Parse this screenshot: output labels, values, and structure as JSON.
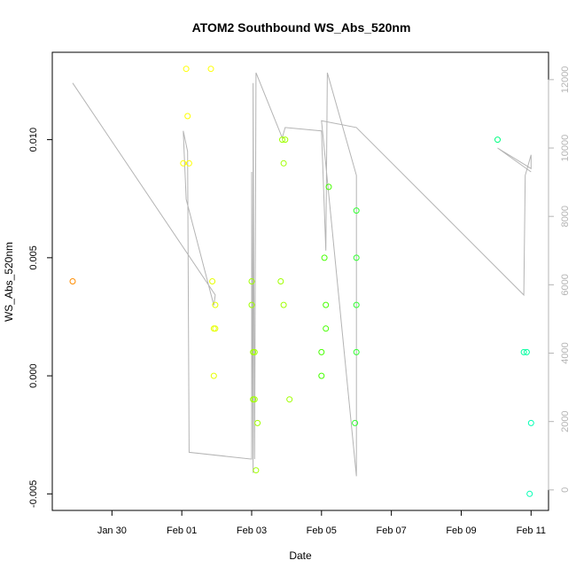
{
  "chart_data": {
    "type": "scatter",
    "title": "ATOM2 Southbound WS_Abs_520nm",
    "xlabel": "Date",
    "ylabel": "WS_Abs_520nm",
    "x_axis": {
      "kind": "date",
      "range": [
        "2017-01-28T07:00",
        "2017-02-11T12:00"
      ],
      "ticks": [
        "2017-01-30",
        "2017-02-01",
        "2017-02-03",
        "2017-02-05",
        "2017-02-07",
        "2017-02-09",
        "2017-02-11"
      ],
      "tick_labels": [
        "Jan 30",
        "Feb 01",
        "Feb 03",
        "Feb 05",
        "Feb 07",
        "Feb 09",
        "Feb 11"
      ]
    },
    "y_axis": {
      "range": [
        -0.0057,
        0.0137
      ],
      "ticks": [
        -0.005,
        0.0,
        0.005,
        0.01
      ],
      "tick_labels": [
        "-0.005",
        "0.000",
        "0.005",
        "0.010"
      ]
    },
    "y2_axis": {
      "range": [
        -600,
        12800
      ],
      "ticks": [
        0,
        2000,
        4000,
        6000,
        8000,
        10000,
        12000
      ],
      "tick_labels": [
        "0",
        "2000",
        "4000",
        "6000",
        "8000",
        "10000",
        "12000"
      ],
      "color": "#b4b4b4"
    },
    "grid": false,
    "legend": "none",
    "series": [
      {
        "kind": "points",
        "marker": "open-circle",
        "points": [
          {
            "x": "2017-01-28T21:00",
            "y": 0.004,
            "color": "#ff8c00"
          },
          {
            "x": "2017-02-01T01:00",
            "y": 0.009,
            "color": "#ffff00"
          },
          {
            "x": "2017-02-01T03:00",
            "y": 0.013,
            "color": "#ffff00"
          },
          {
            "x": "2017-02-01T04:00",
            "y": 0.011,
            "color": "#ffff00"
          },
          {
            "x": "2017-02-01T05:00",
            "y": 0.009,
            "color": "#ffff00"
          },
          {
            "x": "2017-02-01T20:00",
            "y": 0.013,
            "color": "#ffff00"
          },
          {
            "x": "2017-02-01T21:00",
            "y": 0.004,
            "color": "#e6ff00"
          },
          {
            "x": "2017-02-01T22:00",
            "y": 0.002,
            "color": "#e6ff00"
          },
          {
            "x": "2017-02-01T22:00",
            "y": 0.0,
            "color": "#e6ff00"
          },
          {
            "x": "2017-02-01T23:00",
            "y": 0.003,
            "color": "#e6ff00"
          },
          {
            "x": "2017-02-01T23:00",
            "y": 0.002,
            "color": "#e6ff00"
          },
          {
            "x": "2017-02-03T00:00",
            "y": 0.004,
            "color": "#a0ff00"
          },
          {
            "x": "2017-02-03T00:00",
            "y": 0.003,
            "color": "#a0ff00"
          },
          {
            "x": "2017-02-03T01:00",
            "y": 0.001,
            "color": "#a0ff00"
          },
          {
            "x": "2017-02-03T01:00",
            "y": -0.001,
            "color": "#a0ff00"
          },
          {
            "x": "2017-02-03T02:00",
            "y": 0.001,
            "color": "#a0ff00"
          },
          {
            "x": "2017-02-03T02:00",
            "y": -0.001,
            "color": "#a0ff00"
          },
          {
            "x": "2017-02-03T03:00",
            "y": -0.004,
            "color": "#a0ff00"
          },
          {
            "x": "2017-02-03T04:00",
            "y": -0.002,
            "color": "#a0ff00"
          },
          {
            "x": "2017-02-03T20:00",
            "y": 0.004,
            "color": "#a0ff00"
          },
          {
            "x": "2017-02-03T21:00",
            "y": 0.01,
            "color": "#a0ff00"
          },
          {
            "x": "2017-02-03T22:00",
            "y": 0.009,
            "color": "#a0ff00"
          },
          {
            "x": "2017-02-03T22:00",
            "y": 0.003,
            "color": "#a0ff00"
          },
          {
            "x": "2017-02-03T23:00",
            "y": 0.01,
            "color": "#a0ff00"
          },
          {
            "x": "2017-02-04T02:00",
            "y": -0.001,
            "color": "#a0ff00"
          },
          {
            "x": "2017-02-05T00:00",
            "y": 0.001,
            "color": "#46ff00"
          },
          {
            "x": "2017-02-05T00:00",
            "y": 0.0,
            "color": "#46ff00"
          },
          {
            "x": "2017-02-05T02:00",
            "y": 0.005,
            "color": "#46ff00"
          },
          {
            "x": "2017-02-05T03:00",
            "y": 0.003,
            "color": "#46ff00"
          },
          {
            "x": "2017-02-05T03:00",
            "y": 0.002,
            "color": "#46ff00"
          },
          {
            "x": "2017-02-05T05:00",
            "y": 0.008,
            "color": "#46ff00"
          },
          {
            "x": "2017-02-05T23:00",
            "y": -0.002,
            "color": "#32ff32"
          },
          {
            "x": "2017-02-06T00:00",
            "y": 0.007,
            "color": "#32ff32"
          },
          {
            "x": "2017-02-06T00:00",
            "y": 0.005,
            "color": "#32ff32"
          },
          {
            "x": "2017-02-06T00:00",
            "y": 0.003,
            "color": "#32ff32"
          },
          {
            "x": "2017-02-06T00:00",
            "y": 0.001,
            "color": "#32ff32"
          },
          {
            "x": "2017-02-10T01:00",
            "y": 0.01,
            "color": "#00ff80"
          },
          {
            "x": "2017-02-10T19:00",
            "y": 0.001,
            "color": "#00ffa0"
          },
          {
            "x": "2017-02-10T21:00",
            "y": 0.001,
            "color": "#00ffa0"
          },
          {
            "x": "2017-02-10T23:00",
            "y": -0.005,
            "color": "#00ffb4"
          },
          {
            "x": "2017-02-11T00:00",
            "y": -0.002,
            "color": "#00ffb4"
          }
        ]
      },
      {
        "kind": "line",
        "axis": "y2",
        "color": "#b4b4b4",
        "points": [
          {
            "x": "2017-01-28T21:00",
            "y": 11900
          },
          {
            "x": "2017-02-01T23:00",
            "y": 5700
          },
          {
            "x": "2017-02-01T22:00",
            "y": 5400
          },
          {
            "x": "2017-02-01T03:00",
            "y": 8500
          },
          {
            "x": "2017-02-01T01:00",
            "y": 10500
          },
          {
            "x": "2017-02-01T04:00",
            "y": 9900
          },
          {
            "x": "2017-02-01T05:00",
            "y": 1100
          },
          {
            "x": "2017-02-03T00:00",
            "y": 900
          },
          {
            "x": "2017-02-03T00:00",
            "y": 9300
          },
          {
            "x": "2017-02-03T01:00",
            "y": 500
          },
          {
            "x": "2017-02-03T01:00",
            "y": 11900
          },
          {
            "x": "2017-02-03T02:00",
            "y": 900
          },
          {
            "x": "2017-02-03T03:00",
            "y": 12200
          },
          {
            "x": "2017-02-03T21:00",
            "y": 10300
          },
          {
            "x": "2017-02-03T23:00",
            "y": 10600
          },
          {
            "x": "2017-02-05T00:00",
            "y": 10500
          },
          {
            "x": "2017-02-05T03:00",
            "y": 7000
          },
          {
            "x": "2017-02-05T04:00",
            "y": 12200
          },
          {
            "x": "2017-02-06T00:00",
            "y": 9200
          },
          {
            "x": "2017-02-06T00:00",
            "y": 400
          },
          {
            "x": "2017-02-05T00:00",
            "y": 10800
          },
          {
            "x": "2017-02-06T00:00",
            "y": 10600
          },
          {
            "x": "2017-02-10T19:00",
            "y": 5700
          },
          {
            "x": "2017-02-10T20:00",
            "y": 9200
          },
          {
            "x": "2017-02-11T00:00",
            "y": 9800
          },
          {
            "x": "2017-02-11T00:00",
            "y": 9400
          },
          {
            "x": "2017-02-10T01:00",
            "y": 10000
          },
          {
            "x": "2017-02-11T00:00",
            "y": 9300
          }
        ]
      }
    ]
  }
}
